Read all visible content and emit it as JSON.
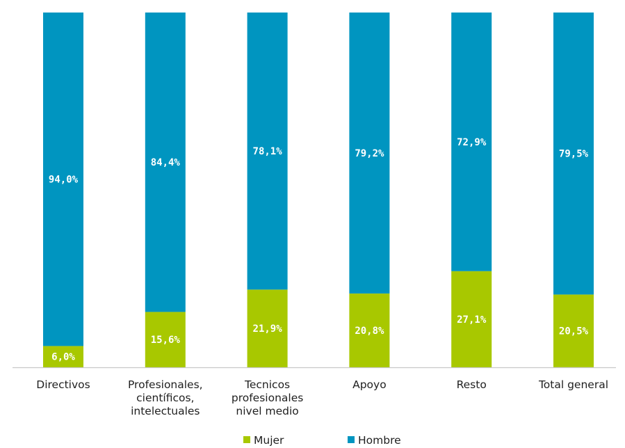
{
  "chart_data": {
    "type": "bar",
    "stacked": true,
    "percent_stacked": true,
    "categories": [
      "Directivos",
      "Profesionales, científicos, intelectuales",
      "Tecnicos profesionales nivel medio",
      "Apoyo",
      "Resto",
      "Total general"
    ],
    "category_lines": [
      [
        "Directivos"
      ],
      [
        "Profesionales,",
        "científicos,",
        "intelectuales"
      ],
      [
        "Tecnicos",
        "profesionales",
        "nivel medio"
      ],
      [
        "Apoyo"
      ],
      [
        "Resto"
      ],
      [
        "Total general"
      ]
    ],
    "series": [
      {
        "name": "Mujer",
        "color": "#a8c800",
        "values": [
          6.0,
          15.6,
          21.9,
          20.8,
          27.1,
          20.5
        ],
        "labels": [
          "6,0%",
          "15,6%",
          "21,9%",
          "20,8%",
          "27,1%",
          "20,5%"
        ]
      },
      {
        "name": "Hombre",
        "color": "#0095c0",
        "values": [
          94.0,
          84.4,
          78.1,
          79.2,
          72.9,
          79.5
        ],
        "labels": [
          "94,0%",
          "84,4%",
          "78,1%",
          "79,2%",
          "72,9%",
          "79,5%"
        ]
      }
    ],
    "ylim": [
      0,
      100
    ],
    "grid": false,
    "legend": "bottom",
    "axis_color": "#c8c8c8"
  }
}
